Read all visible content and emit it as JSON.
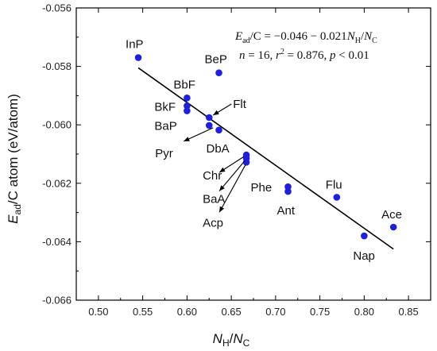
{
  "chart_data": {
    "type": "scatter",
    "title": "",
    "xlabel_main": "N",
    "xlabel_num_sub": "H",
    "xlabel_sep": "/",
    "xlabel_den": "N",
    "xlabel_den_sub": "C",
    "ylabel_main": "E",
    "ylabel_sub": "ad",
    "ylabel_rest": "/C atom (eV/atom)",
    "xlim": [
      0.475,
      0.875
    ],
    "ylim": [
      -0.066,
      -0.056
    ],
    "xticks": [
      0.5,
      0.55,
      0.6,
      0.65,
      0.7,
      0.75,
      0.8,
      0.85
    ],
    "xtick_labels": [
      "0.50",
      "0.55",
      "0.60",
      "0.65",
      "0.70",
      "0.75",
      "0.80",
      "0.85"
    ],
    "yticks": [
      -0.066,
      -0.064,
      -0.062,
      -0.06,
      -0.058,
      -0.056
    ],
    "ytick_labels": [
      "-0.066",
      "-0.064",
      "-0.062",
      "-0.060",
      "-0.058",
      "-0.056"
    ],
    "point_color": "#1f1fe0",
    "line_color": "#000000",
    "points": [
      {
        "name": "InP",
        "x": 0.545,
        "y": -0.0577
      },
      {
        "name": "BeP",
        "x": 0.636,
        "y": -0.05822
      },
      {
        "name": "BbF",
        "x": 0.6,
        "y": -0.05908
      },
      {
        "name": "BkF",
        "x": 0.6,
        "y": -0.05935
      },
      {
        "name": "BaP",
        "x": 0.6,
        "y": -0.05952
      },
      {
        "name": "Flt",
        "x": 0.625,
        "y": -0.05975
      },
      {
        "name": "Pyr",
        "x": 0.625,
        "y": -0.06002
      },
      {
        "name": "DbA",
        "x": 0.636,
        "y": -0.06018
      },
      {
        "name": "Chr",
        "x": 0.667,
        "y": -0.06103
      },
      {
        "name": "BaA",
        "x": 0.667,
        "y": -0.06115
      },
      {
        "name": "Acp",
        "x": 0.667,
        "y": -0.06128
      },
      {
        "name": "Phe",
        "x": 0.714,
        "y": -0.06212
      },
      {
        "name": "Ant",
        "x": 0.714,
        "y": -0.06228
      },
      {
        "name": "Flu",
        "x": 0.769,
        "y": -0.06248
      },
      {
        "name": "Nap",
        "x": 0.8,
        "y": -0.0638
      },
      {
        "name": "Ace",
        "x": 0.833,
        "y": -0.0635
      }
    ],
    "fit_line": {
      "x": [
        0.545,
        0.833
      ],
      "y": [
        -0.05805,
        -0.06425
      ]
    },
    "equation_line1": "E_ad/C = −0.046 − 0.021N_H/N_C",
    "equation_line2": "n = 16, r² = 0.876, p < 0.01"
  }
}
